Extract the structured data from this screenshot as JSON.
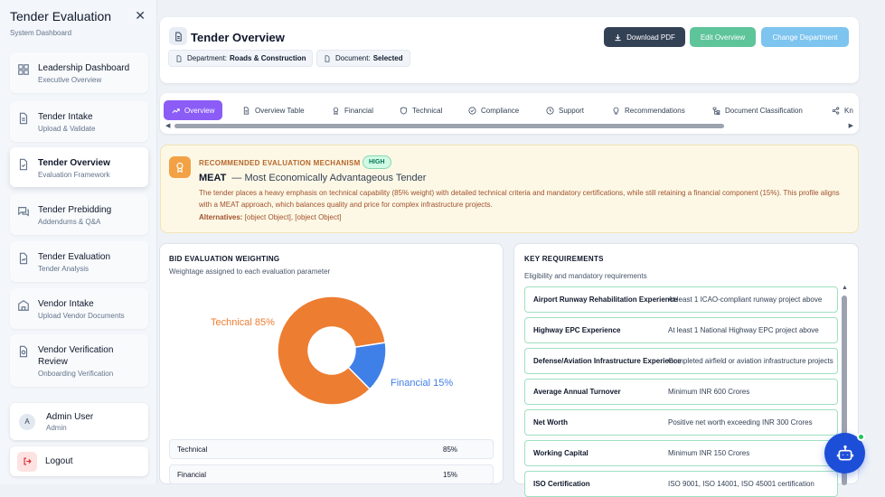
{
  "sidebar": {
    "title": "Tender Evaluation",
    "subtitle": "System Dashboard",
    "items": [
      {
        "label": "Leadership Dashboard",
        "sub": "Executive Overview"
      },
      {
        "label": "Tender Intake",
        "sub": "Upload & Validate"
      },
      {
        "label": "Tender Overview",
        "sub": "Evaluation Framework"
      },
      {
        "label": "Tender Prebidding",
        "sub": "Addendums & Q&A"
      },
      {
        "label": "Tender Evaluation",
        "sub": "Tender Analysis"
      },
      {
        "label": "Vendor Intake",
        "sub": "Upload Vendor Documents"
      },
      {
        "label": "Vendor Verification Review",
        "sub": "Onboarding Verification"
      }
    ],
    "active_index": 2,
    "user": {
      "initial": "A",
      "name": "Admin User",
      "role": "Admin"
    },
    "logout_label": "Logout"
  },
  "header": {
    "title": "Tender Overview",
    "department_label": "Department:",
    "department_value": "Roads & Construction",
    "document_label": "Document:",
    "document_value": "Selected",
    "download_label": "Download PDF",
    "edit_label": "Edit Overview",
    "change_label": "Change Department"
  },
  "tabs": [
    "Overview",
    "Overview Table",
    "Financial",
    "Technical",
    "Compliance",
    "Support",
    "Recommendations",
    "Document Classification",
    "Kn"
  ],
  "recommendation": {
    "heading": "RECOMMENDED EVALUATION MECHANISM",
    "badge": "HIGH",
    "mechanism": "MEAT",
    "mechanism_full": "— Most Economically Advantageous Tender",
    "description": "The tender places a heavy emphasis on technical capability (85% weight) with detailed technical criteria and mandatory certifications, while still retaining a financial component (15%). This profile aligns with a MEAT approach, which balances quality and price for complex infrastructure projects.",
    "alternatives_label": "Alternatives:",
    "alternatives_value": "[object Object], [object Object]"
  },
  "weighting": {
    "title": "BID EVALUATION WEIGHTING",
    "subtitle": "Weightage assigned to each evaluation parameter",
    "rows": [
      {
        "name": "Technical",
        "value": "85%"
      },
      {
        "name": "Financial",
        "value": "15%"
      }
    ]
  },
  "chart_data": {
    "type": "pie",
    "donut": true,
    "categories": [
      "Technical",
      "Financial"
    ],
    "values": [
      85,
      15
    ],
    "labels": [
      "Technical 85%",
      "Financial 15%"
    ],
    "colors": [
      "#ed7d31",
      "#3f7fe8"
    ]
  },
  "requirements": {
    "title": "KEY REQUIREMENTS",
    "subtitle": "Eligibility and mandatory requirements",
    "rows": [
      {
        "name": "Airport Runway Rehabilitation Experience",
        "value": "At least 1 ICAO-compliant runway project above"
      },
      {
        "name": "Highway EPC Experience",
        "value": "At least 1 National Highway EPC project above"
      },
      {
        "name": "Defense/Aviation Infrastructure Experience",
        "value": "Completed airfield or aviation infrastructure projects"
      },
      {
        "name": "Average Annual Turnover",
        "value": "Minimum INR 600 Crores"
      },
      {
        "name": "Net Worth",
        "value": "Positive net worth exceeding INR 300 Crores"
      },
      {
        "name": "Working Capital",
        "value": "Minimum INR 150 Crores"
      },
      {
        "name": "ISO Certification",
        "value": "ISO 9001, ISO 14001, ISO 45001 certification"
      }
    ]
  }
}
